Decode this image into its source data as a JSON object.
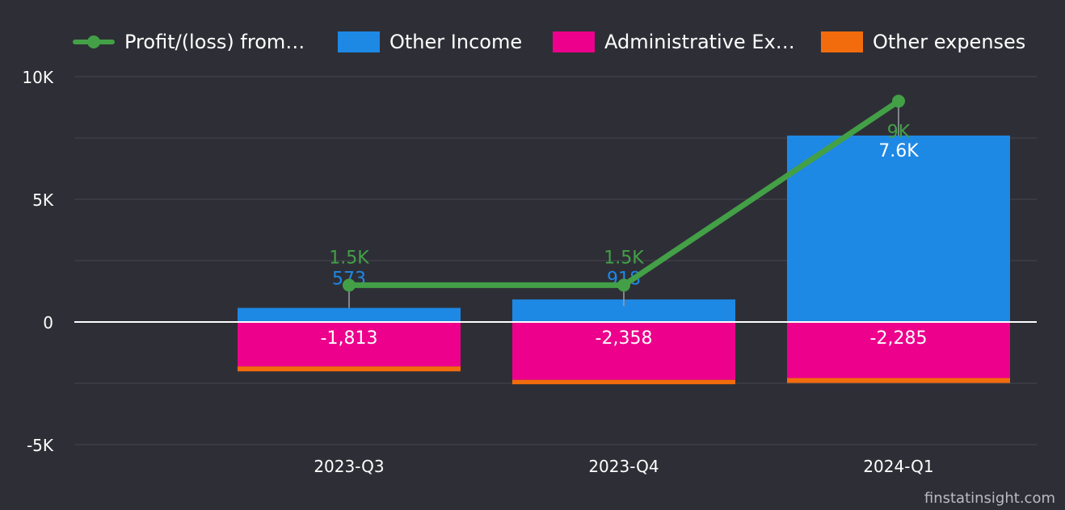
{
  "chart_data": {
    "type": "bar",
    "categories": [
      "2023-Q3",
      "2023-Q4",
      "2024-Q1"
    ],
    "series": [
      {
        "name": "Profit/(loss) from…",
        "kind": "line",
        "color": "#43a047",
        "values": [
          1500,
          1500,
          9000
        ],
        "labels": [
          "1.5K",
          "1.5K",
          "9K"
        ]
      },
      {
        "name": "Other Income",
        "kind": "bar",
        "color": "#1e88e5",
        "values": [
          573,
          918,
          7600
        ],
        "labels": [
          "573",
          "918",
          "7.6K"
        ]
      },
      {
        "name": "Administrative Ex…",
        "kind": "bar",
        "color": "#ec008c",
        "values": [
          -1813,
          -2358,
          -2285
        ],
        "labels": [
          "-1,813",
          "-2,358",
          "-2,285"
        ]
      },
      {
        "name": "Other expenses",
        "kind": "bar",
        "color": "#f26c0d",
        "values": [
          -200,
          -180,
          -200
        ],
        "labels": []
      }
    ],
    "y_ticks": [
      10000,
      5000,
      0,
      -5000
    ],
    "y_tick_labels": [
      "10K",
      "5K",
      "0",
      "-5K"
    ],
    "ylim": [
      -5000,
      10000
    ],
    "grid": true,
    "legend_position": "top",
    "xlabel": "",
    "ylabel": "",
    "title": ""
  },
  "watermark": "finstatinsight.com"
}
